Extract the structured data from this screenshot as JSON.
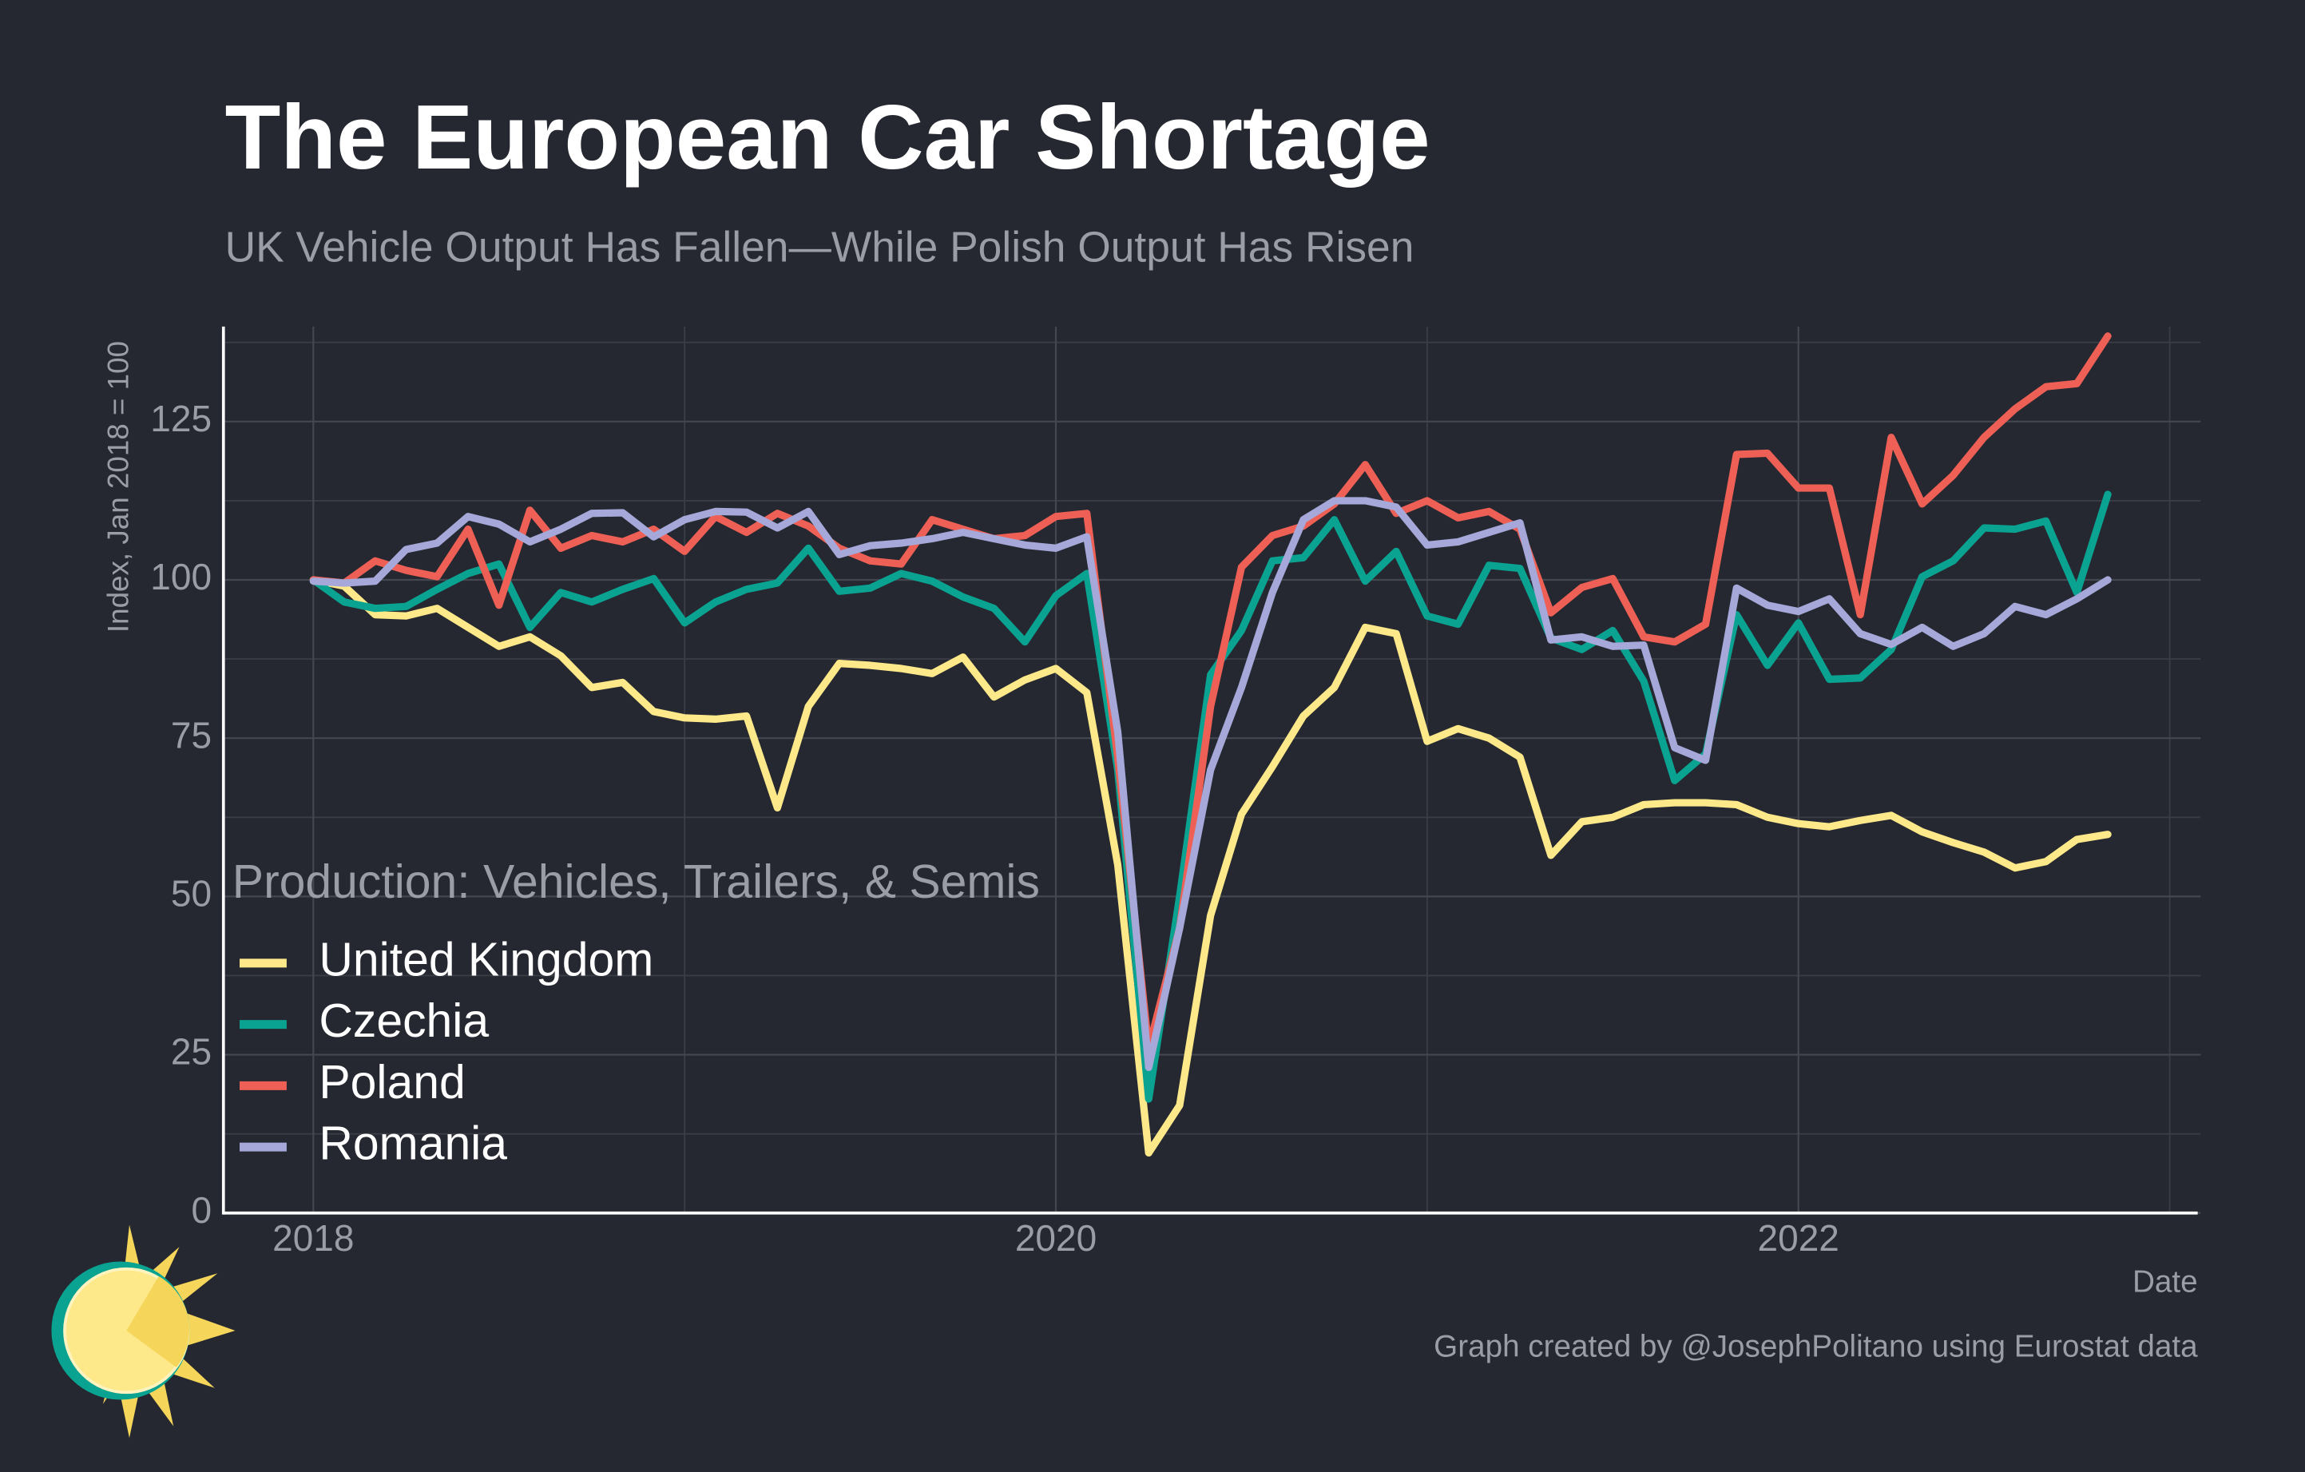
{
  "chart_data": {
    "type": "line",
    "title": "The European Car Shortage",
    "subtitle": "UK Vehicle Output Has Fallen—While Polish Output Has Risen",
    "ylabel": "Index, Jan 2018 = 100",
    "xlabel": "Date",
    "legend_title": "Production: Vehicles, Trailers, & Semis",
    "caption": "Graph created by @JosephPolitano using Eurostat data",
    "legend_position": "lower left",
    "grid": true,
    "x": [
      "2018-01",
      "2018-02",
      "2018-03",
      "2018-04",
      "2018-05",
      "2018-06",
      "2018-07",
      "2018-08",
      "2018-09",
      "2018-10",
      "2018-11",
      "2018-12",
      "2019-01",
      "2019-02",
      "2019-03",
      "2019-04",
      "2019-05",
      "2019-06",
      "2019-07",
      "2019-08",
      "2019-09",
      "2019-10",
      "2019-11",
      "2019-12",
      "2020-01",
      "2020-02",
      "2020-03",
      "2020-04",
      "2020-05",
      "2020-06",
      "2020-07",
      "2020-08",
      "2020-09",
      "2020-10",
      "2020-11",
      "2020-12",
      "2021-01",
      "2021-02",
      "2021-03",
      "2021-04",
      "2021-05",
      "2021-06",
      "2021-07",
      "2021-08",
      "2021-09",
      "2021-10",
      "2021-11",
      "2021-12",
      "2022-01",
      "2022-02",
      "2022-03",
      "2022-04",
      "2022-05",
      "2022-06",
      "2022-07",
      "2022-08",
      "2022-09",
      "2022-10",
      "2022-11"
    ],
    "xlim": [
      "2017-10",
      "2023-02"
    ],
    "xticks": [
      {
        "value": "2018-01",
        "label": "2018"
      },
      {
        "value": "2020-01",
        "label": "2020"
      },
      {
        "value": "2022-01",
        "label": "2022"
      }
    ],
    "xminor": [
      "2019-01",
      "2021-01",
      "2023-01"
    ],
    "ylim": [
      0,
      140
    ],
    "yticks": [
      0,
      25,
      50,
      75,
      100,
      125
    ],
    "yminor": [
      12.5,
      37.5,
      62.5,
      87.5,
      112.5,
      137.5
    ],
    "series": [
      {
        "name": "United Kingdom",
        "color": "#fde88a",
        "values": [
          100,
          99,
          94.5,
          94.3,
          95.5,
          92.5,
          89.5,
          91,
          88,
          83,
          83.8,
          79.2,
          78.2,
          78,
          78.5,
          64,
          80,
          86.8,
          86.5,
          86,
          85.2,
          87.8,
          81.5,
          84.2,
          86,
          82.2,
          55,
          9.5,
          17,
          47,
          63,
          70.5,
          78.5,
          83,
          92.5,
          91.5,
          74.5,
          76.5,
          75,
          72,
          56.5,
          61.8,
          62.5,
          64.5,
          64.8,
          64.8,
          64.5,
          62.5,
          61.5,
          61,
          62,
          62.8,
          60.2,
          58.5,
          57,
          54.5,
          55.5,
          59,
          59.8
        ]
      },
      {
        "name": "Czechia",
        "color": "#0aa392",
        "values": [
          100,
          96.5,
          95.5,
          95.8,
          98.5,
          101,
          102.5,
          92.5,
          98,
          96.5,
          98.5,
          100.2,
          93.2,
          96.5,
          98.5,
          99.5,
          105,
          98.2,
          98.7,
          101,
          99.8,
          97.3,
          95.5,
          90.2,
          97.5,
          101,
          70,
          18,
          50,
          85,
          92,
          103,
          103.5,
          109.5,
          99.8,
          104.5,
          94.3,
          93,
          102.3,
          101.8,
          90.8,
          89,
          92,
          84,
          68.3,
          72.5,
          94.5,
          86.5,
          93.2,
          84.3,
          84.5,
          89,
          100.5,
          103,
          108.2,
          108,
          109.3,
          98,
          113.5
        ]
      },
      {
        "name": "Poland",
        "color": "#ee6055",
        "values": [
          100,
          99.5,
          103,
          101.5,
          100.5,
          108,
          96,
          111,
          105,
          107,
          106,
          108,
          104.5,
          110,
          107.5,
          110.5,
          108.5,
          105,
          103,
          102.5,
          109.5,
          108,
          106.5,
          107,
          110,
          110.5,
          72,
          26,
          45,
          80,
          102,
          107,
          108.5,
          112,
          118.2,
          110.5,
          112.5,
          109.8,
          110.8,
          108,
          94.8,
          98.8,
          100.2,
          91,
          90.2,
          93,
          119.8,
          120,
          114.5,
          114.5,
          94.5,
          122.5,
          112,
          116.5,
          122.5,
          127,
          130.5,
          131,
          138.5
        ]
      },
      {
        "name": "Romania",
        "color": "#a5a8d8",
        "values": [
          99.8,
          99.5,
          99.8,
          104.8,
          105.8,
          110,
          108.8,
          106,
          108,
          110.5,
          110.6,
          106.8,
          109.5,
          110.8,
          110.7,
          108.2,
          110.8,
          104,
          105.4,
          105.8,
          106.5,
          107.5,
          106.5,
          105.5,
          105,
          106.8,
          76,
          23,
          45,
          70,
          83,
          98,
          109.5,
          112.5,
          112.5,
          111.5,
          105.5,
          106,
          107.5,
          109,
          90.5,
          91,
          89.5,
          89.7,
          73.5,
          71.5,
          98.7,
          96,
          95,
          97,
          91.5,
          89.8,
          92.5,
          89.5,
          91.5,
          95.8,
          94.5,
          97,
          100
        ]
      }
    ]
  }
}
